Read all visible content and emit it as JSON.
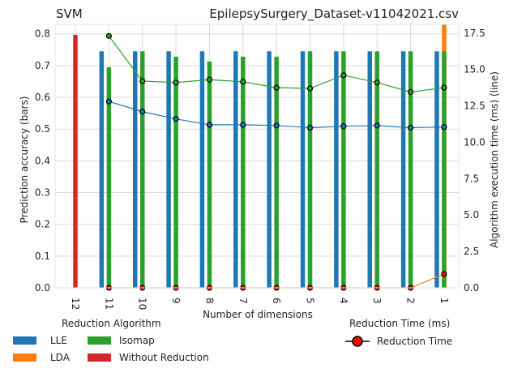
{
  "chart_data": {
    "type": "bar",
    "title_left": "SVM",
    "title_right": "EpilepsySurgery_Dataset-v11042021.csv",
    "xlabel": "Number of dimensions",
    "ylabel_left": "Prediction accuracy (bars)",
    "ylabel_right": "Algorithm execution time (ms) (line)",
    "categories": [
      "12",
      "11",
      "10",
      "9",
      "8",
      "7",
      "6",
      "5",
      "4",
      "3",
      "2",
      "1"
    ],
    "ylim_left": [
      0,
      0.83
    ],
    "yticks_left": [
      "0.0",
      "0.1",
      "0.2",
      "0.3",
      "0.4",
      "0.5",
      "0.6",
      "0.7",
      "0.8"
    ],
    "ylim_right": [
      0,
      18.1
    ],
    "yticks_right": [
      "0.0",
      "2.5",
      "5.0",
      "7.5",
      "10.0",
      "12.5",
      "15.0",
      "17.5"
    ],
    "grid": true,
    "bar_series": [
      {
        "name": "LLE",
        "color": "#1f77b4",
        "values": [
          null,
          0.745,
          0.745,
          0.745,
          0.745,
          0.745,
          0.745,
          0.745,
          0.745,
          0.745,
          0.745,
          0.745
        ]
      },
      {
        "name": "LDA",
        "color": "#ff7f0e",
        "values": [
          null,
          null,
          null,
          null,
          null,
          null,
          null,
          null,
          null,
          null,
          null,
          0.83
        ]
      },
      {
        "name": "Isomap",
        "color": "#2ca02c",
        "values": [
          null,
          0.695,
          0.745,
          0.728,
          0.713,
          0.728,
          0.728,
          0.745,
          0.745,
          0.745,
          0.745,
          0.745
        ]
      },
      {
        "name": "Without Reduction",
        "color": "#d62728",
        "values": [
          0.797,
          null,
          null,
          null,
          null,
          null,
          null,
          null,
          null,
          null,
          null,
          null
        ]
      }
    ],
    "line_series": [
      {
        "name": "LLE",
        "color": "#1f77b4",
        "values": [
          null,
          12.8,
          12.1,
          11.6,
          11.2,
          11.2,
          11.15,
          11.0,
          11.1,
          11.15,
          11.0,
          11.05
        ]
      },
      {
        "name": "Isomap",
        "color": "#2ca02c",
        "values": [
          null,
          17.3,
          14.2,
          14.1,
          14.3,
          14.15,
          13.75,
          13.7,
          14.6,
          14.1,
          13.45,
          13.75
        ]
      },
      {
        "name": "LDA",
        "color": "#ff7f0e",
        "values": [
          null,
          0,
          0,
          0,
          0,
          0,
          0,
          0,
          0,
          0,
          0,
          0.95
        ]
      }
    ],
    "legend_left": {
      "title": "Reduction Algorithm",
      "items": [
        {
          "label": "LLE",
          "color": "#1f77b4"
        },
        {
          "label": "Isomap",
          "color": "#2ca02c"
        },
        {
          "label": "LDA",
          "color": "#ff7f0e"
        },
        {
          "label": "Without Reduction",
          "color": "#d62728"
        }
      ]
    },
    "legend_right": {
      "title": "Reduction Time (ms)",
      "item_label": "Reduction Time",
      "marker_color": "#ff0000"
    }
  }
}
